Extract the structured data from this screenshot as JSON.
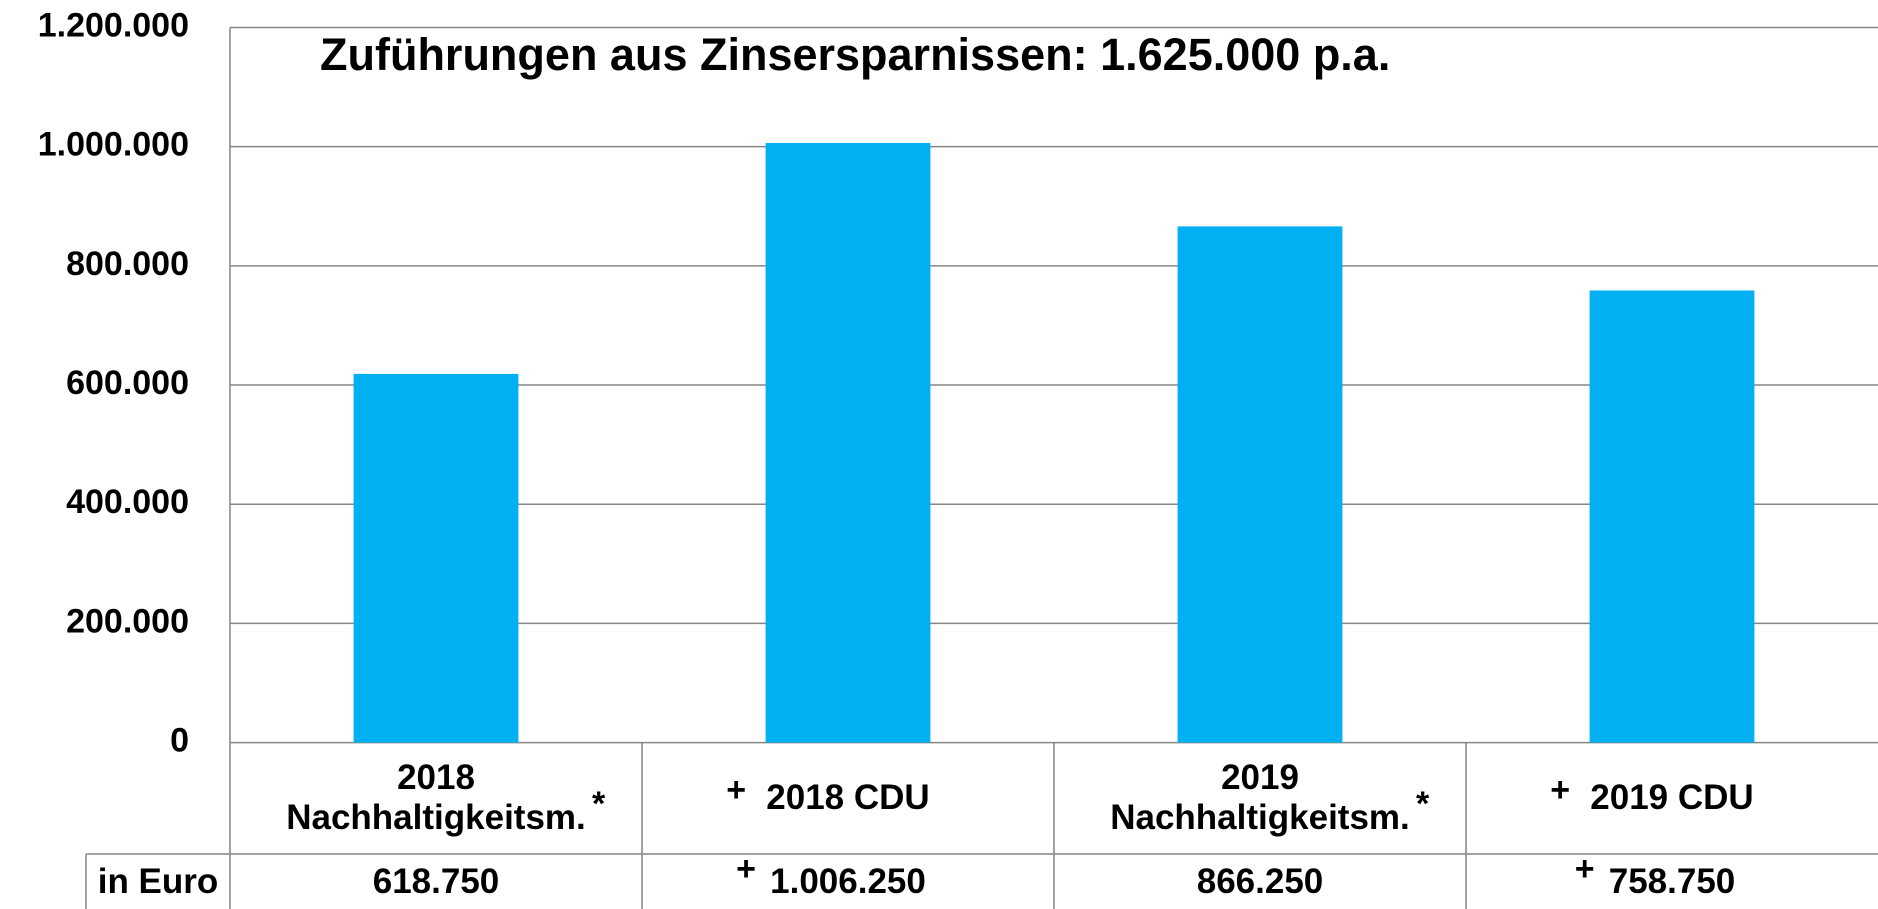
{
  "chart_data": {
    "type": "bar",
    "title": "Zuführungen aus Zinsersparnissen: 1.625.000 p.a.",
    "categories": [
      "2018 Nachhaltigkeitsm.",
      "2018 CDU",
      "2019 Nachhaltigkeitsm.",
      "2019 CDU"
    ],
    "category_prefix": [
      null,
      "+",
      null,
      "+"
    ],
    "category_suffix": [
      "*",
      null,
      "*",
      null
    ],
    "values": [
      618750,
      1006250,
      866250,
      758750
    ],
    "value_labels": [
      "618.750",
      "1.006.250",
      "866.250",
      "758.750"
    ],
    "value_prefix": [
      null,
      "+",
      null,
      "+"
    ],
    "table_row_label": "in Euro",
    "color": "#00b0f0",
    "ylim": [
      0,
      1200000
    ],
    "yticks": [
      0,
      {
        "value": 200000,
        "label": "200.000"
      },
      {
        "value": 400000,
        "label": "400.000"
      },
      {
        "value": 600000,
        "label": "600.000"
      },
      {
        "value": 800000,
        "label": "800.000"
      },
      {
        "value": 1000000,
        "label": "1.000.000"
      },
      {
        "value": 1200000,
        "label": "1.200.000"
      }
    ],
    "grid": true
  }
}
